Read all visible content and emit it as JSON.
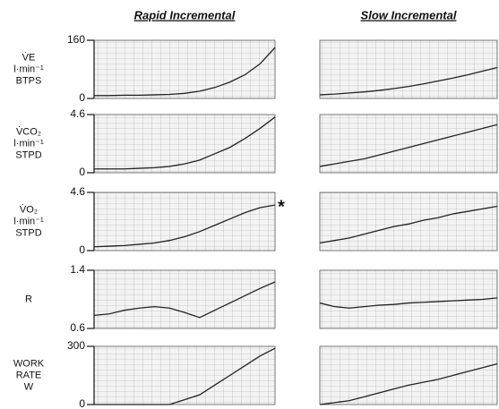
{
  "chart_data": [
    {
      "type": "line",
      "title": "Rapid Incremental",
      "ylabel": [
        "V̇E",
        "l·min⁻¹",
        "BTPS"
      ],
      "ylim": [
        0,
        160
      ],
      "yticks": [
        0,
        160
      ],
      "xlim": [
        0,
        12
      ],
      "x": [
        0,
        1,
        2,
        3,
        4,
        5,
        6,
        7,
        8,
        9,
        10,
        11,
        12
      ],
      "values": [
        8,
        8,
        9,
        9,
        10,
        11,
        14,
        20,
        30,
        45,
        65,
        95,
        140
      ],
      "color": "#222"
    },
    {
      "type": "line",
      "ylabel": [
        "V̇CO₂",
        "l·min⁻¹",
        "STPD"
      ],
      "ylim": [
        0,
        4.6
      ],
      "yticks": [
        0,
        4.6
      ],
      "xlim": [
        0,
        12
      ],
      "x": [
        0,
        1,
        2,
        3,
        4,
        5,
        6,
        7,
        8,
        9,
        10,
        11,
        12
      ],
      "values": [
        0.3,
        0.3,
        0.3,
        0.35,
        0.4,
        0.5,
        0.7,
        1.0,
        1.5,
        2.0,
        2.7,
        3.5,
        4.4
      ],
      "color": "#222"
    },
    {
      "type": "line",
      "ylabel": [
        "V̇O₂",
        "l·min⁻¹",
        "STPD"
      ],
      "annotation": "*",
      "ylim": [
        0,
        4.6
      ],
      "yticks": [
        0,
        4.6
      ],
      "xlim": [
        0,
        12
      ],
      "x": [
        0,
        1,
        2,
        3,
        4,
        5,
        6,
        7,
        8,
        9,
        10,
        11,
        12
      ],
      "values": [
        0.3,
        0.35,
        0.4,
        0.5,
        0.6,
        0.8,
        1.1,
        1.5,
        2.0,
        2.5,
        3.0,
        3.4,
        3.6
      ],
      "color": "#222"
    },
    {
      "type": "line",
      "ylabel": [
        "R"
      ],
      "ylim": [
        0.6,
        1.4
      ],
      "yticks": [
        0.6,
        1.4
      ],
      "xlim": [
        0,
        12
      ],
      "x": [
        0,
        1,
        2,
        3,
        4,
        5,
        6,
        7,
        8,
        9,
        10,
        11,
        12
      ],
      "values": [
        0.78,
        0.8,
        0.85,
        0.88,
        0.9,
        0.88,
        0.82,
        0.75,
        0.85,
        0.95,
        1.05,
        1.15,
        1.24
      ],
      "color": "#222"
    },
    {
      "type": "line",
      "ylabel": [
        "WORK",
        "RATE",
        "W"
      ],
      "ylim": [
        0,
        300
      ],
      "yticks": [
        0,
        300
      ],
      "xlim": [
        0,
        12
      ],
      "x": [
        0,
        1,
        2,
        3,
        4,
        5,
        6,
        7,
        8,
        9,
        10,
        11,
        12
      ],
      "values": [
        0,
        0,
        0,
        0,
        0,
        0,
        25,
        50,
        100,
        150,
        200,
        250,
        290
      ],
      "color": "#222"
    },
    {
      "type": "line",
      "title": "Slow Incremental",
      "ylim": [
        0,
        160
      ],
      "xlim": [
        0,
        24
      ],
      "x": [
        0,
        2,
        4,
        6,
        8,
        10,
        12,
        14,
        16,
        18,
        20,
        22,
        24
      ],
      "values": [
        10,
        12,
        15,
        18,
        22,
        27,
        33,
        40,
        48,
        56,
        65,
        75,
        85
      ],
      "color": "#222"
    },
    {
      "type": "line",
      "ylim": [
        0,
        4.6
      ],
      "xlim": [
        0,
        24
      ],
      "x": [
        0,
        2,
        4,
        6,
        8,
        10,
        12,
        14,
        16,
        18,
        20,
        22,
        24
      ],
      "values": [
        0.5,
        0.7,
        0.9,
        1.1,
        1.4,
        1.7,
        2.0,
        2.3,
        2.6,
        2.9,
        3.2,
        3.5,
        3.8
      ],
      "color": "#222"
    },
    {
      "type": "line",
      "ylim": [
        0,
        4.6
      ],
      "xlim": [
        0,
        24
      ],
      "x": [
        0,
        2,
        4,
        6,
        8,
        10,
        12,
        14,
        16,
        18,
        20,
        22,
        24
      ],
      "values": [
        0.6,
        0.8,
        1.0,
        1.3,
        1.6,
        1.9,
        2.1,
        2.4,
        2.6,
        2.9,
        3.1,
        3.3,
        3.5
      ],
      "color": "#222"
    },
    {
      "type": "line",
      "ylim": [
        0.6,
        1.4
      ],
      "xlim": [
        0,
        24
      ],
      "x": [
        0,
        2,
        4,
        6,
        8,
        10,
        12,
        14,
        16,
        18,
        20,
        22,
        24
      ],
      "values": [
        0.95,
        0.9,
        0.88,
        0.9,
        0.92,
        0.93,
        0.95,
        0.96,
        0.97,
        0.98,
        0.99,
        1.0,
        1.02
      ],
      "color": "#222"
    },
    {
      "type": "line",
      "ylim": [
        0,
        300
      ],
      "xlim": [
        0,
        24
      ],
      "x": [
        0,
        2,
        4,
        6,
        8,
        10,
        12,
        14,
        16,
        18,
        20,
        22,
        24
      ],
      "values": [
        0,
        10,
        20,
        40,
        60,
        80,
        100,
        115,
        130,
        150,
        170,
        190,
        210
      ],
      "color": "#222"
    }
  ]
}
